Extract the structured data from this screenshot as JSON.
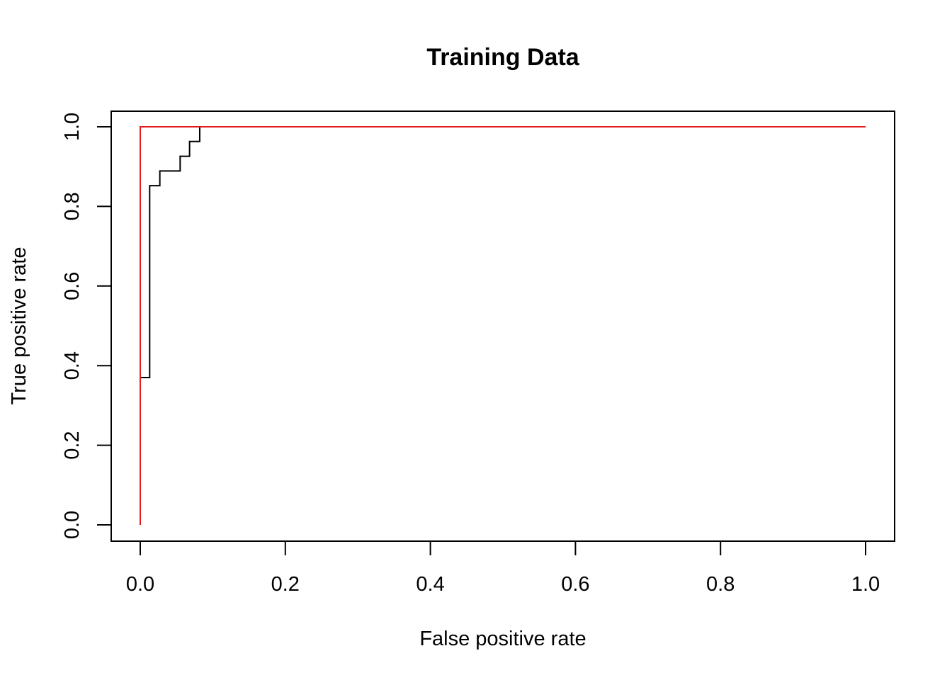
{
  "chart_data": {
    "type": "line",
    "title": "Training Data",
    "xlabel": "False positive rate",
    "ylabel": "True positive rate",
    "xlim": [
      0,
      1
    ],
    "ylim": [
      0,
      1
    ],
    "x_ticks": [
      "0.0",
      "0.2",
      "0.4",
      "0.6",
      "0.8",
      "1.0"
    ],
    "y_ticks": [
      "0.0",
      "0.2",
      "0.4",
      "0.6",
      "0.8",
      "1.0"
    ],
    "grid": false,
    "legend": "none",
    "series": [
      {
        "color": "#000000",
        "step": true,
        "points": [
          [
            0.0,
            0.0
          ],
          [
            0.0,
            0.37
          ],
          [
            0.013,
            0.37
          ],
          [
            0.013,
            0.852
          ],
          [
            0.027,
            0.852
          ],
          [
            0.027,
            0.889
          ],
          [
            0.055,
            0.889
          ],
          [
            0.055,
            0.926
          ],
          [
            0.068,
            0.926
          ],
          [
            0.068,
            0.963
          ],
          [
            0.082,
            0.963
          ],
          [
            0.082,
            1.0
          ],
          [
            1.0,
            1.0
          ]
        ]
      },
      {
        "color": "#e41a1c",
        "step": true,
        "points": [
          [
            0.0,
            0.0
          ],
          [
            0.0,
            1.0
          ],
          [
            1.0,
            1.0
          ]
        ]
      }
    ]
  }
}
